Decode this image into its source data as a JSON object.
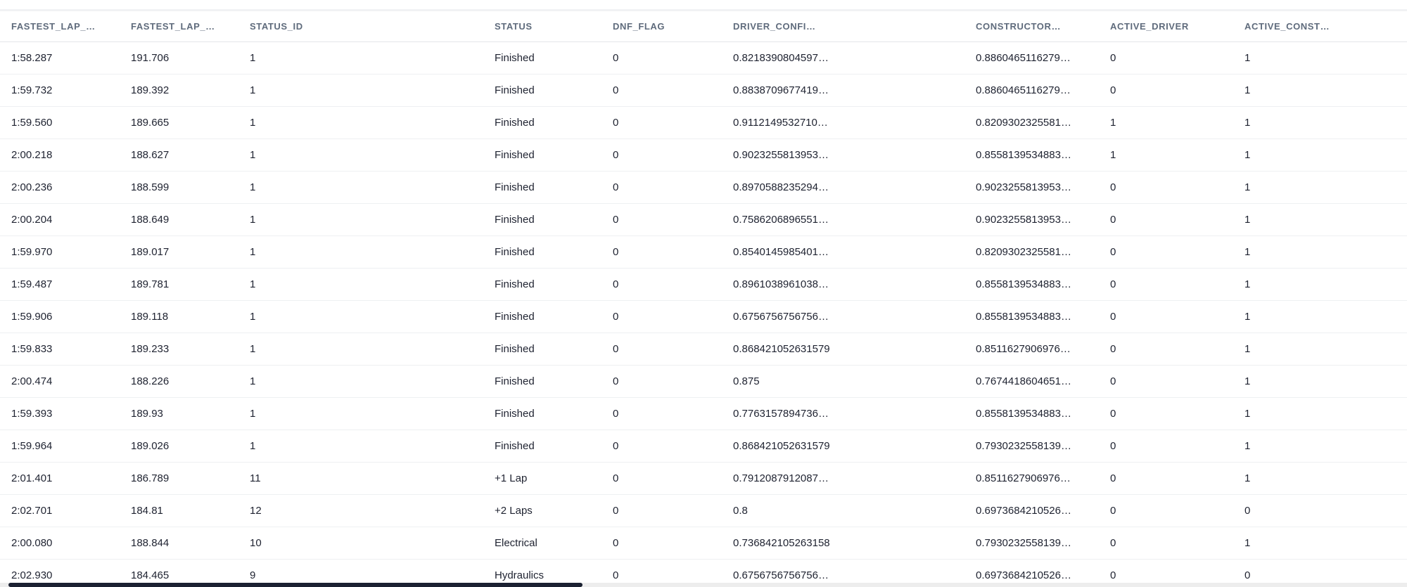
{
  "colors": {
    "header_text": "#5f6b7c",
    "body_text": "#1e2230",
    "row_divider": "#eef0f2",
    "header_border": "#e3e6ea",
    "top_border": "#f1f2f4",
    "scroll_track": "#ededed",
    "scroll_thumb": "#1b2132",
    "background": "#ffffff"
  },
  "table": {
    "columns": [
      {
        "label": "FASTEST_LAP_…"
      },
      {
        "label": "FASTEST_LAP_…"
      },
      {
        "label": "STATUS_ID"
      },
      {
        "label": "STATUS"
      },
      {
        "label": "DNF_FLAG"
      },
      {
        "label": "DRIVER_CONFI…"
      },
      {
        "label": "CONSTRUCTOR…"
      },
      {
        "label": "ACTIVE_DRIVER"
      },
      {
        "label": "ACTIVE_CONST…"
      }
    ],
    "rows": [
      [
        "1:58.287",
        "191.706",
        "1",
        "Finished",
        "0",
        "0.8218390804597…",
        "0.8860465116279…",
        "0",
        "1"
      ],
      [
        "1:59.732",
        "189.392",
        "1",
        "Finished",
        "0",
        "0.8838709677419…",
        "0.8860465116279…",
        "0",
        "1"
      ],
      [
        "1:59.560",
        "189.665",
        "1",
        "Finished",
        "0",
        "0.9112149532710…",
        "0.8209302325581…",
        "1",
        "1"
      ],
      [
        "2:00.218",
        "188.627",
        "1",
        "Finished",
        "0",
        "0.9023255813953…",
        "0.8558139534883…",
        "1",
        "1"
      ],
      [
        "2:00.236",
        "188.599",
        "1",
        "Finished",
        "0",
        "0.8970588235294…",
        "0.9023255813953…",
        "0",
        "1"
      ],
      [
        "2:00.204",
        "188.649",
        "1",
        "Finished",
        "0",
        "0.7586206896551…",
        "0.9023255813953…",
        "0",
        "1"
      ],
      [
        "1:59.970",
        "189.017",
        "1",
        "Finished",
        "0",
        "0.8540145985401…",
        "0.8209302325581…",
        "0",
        "1"
      ],
      [
        "1:59.487",
        "189.781",
        "1",
        "Finished",
        "0",
        "0.8961038961038…",
        "0.8558139534883…",
        "0",
        "1"
      ],
      [
        "1:59.906",
        "189.118",
        "1",
        "Finished",
        "0",
        "0.6756756756756…",
        "0.8558139534883…",
        "0",
        "1"
      ],
      [
        "1:59.833",
        "189.233",
        "1",
        "Finished",
        "0",
        "0.868421052631579",
        "0.8511627906976…",
        "0",
        "1"
      ],
      [
        "2:00.474",
        "188.226",
        "1",
        "Finished",
        "0",
        "0.875",
        "0.7674418604651…",
        "0",
        "1"
      ],
      [
        "1:59.393",
        "189.93",
        "1",
        "Finished",
        "0",
        "0.7763157894736…",
        "0.8558139534883…",
        "0",
        "1"
      ],
      [
        "1:59.964",
        "189.026",
        "1",
        "Finished",
        "0",
        "0.868421052631579",
        "0.7930232558139…",
        "0",
        "1"
      ],
      [
        "2:01.401",
        "186.789",
        "11",
        "+1 Lap",
        "0",
        "0.7912087912087…",
        "0.8511627906976…",
        "0",
        "1"
      ],
      [
        "2:02.701",
        "184.81",
        "12",
        "+2 Laps",
        "0",
        "0.8",
        "0.6973684210526…",
        "0",
        "0"
      ],
      [
        "2:00.080",
        "188.844",
        "10",
        "Electrical",
        "0",
        "0.736842105263158",
        "0.7930232558139…",
        "0",
        "1"
      ],
      [
        "2:02.930",
        "184.465",
        "9",
        "Hydraulics",
        "0",
        "0.6756756756756…",
        "0.6973684210526…",
        "0",
        "0"
      ]
    ]
  }
}
